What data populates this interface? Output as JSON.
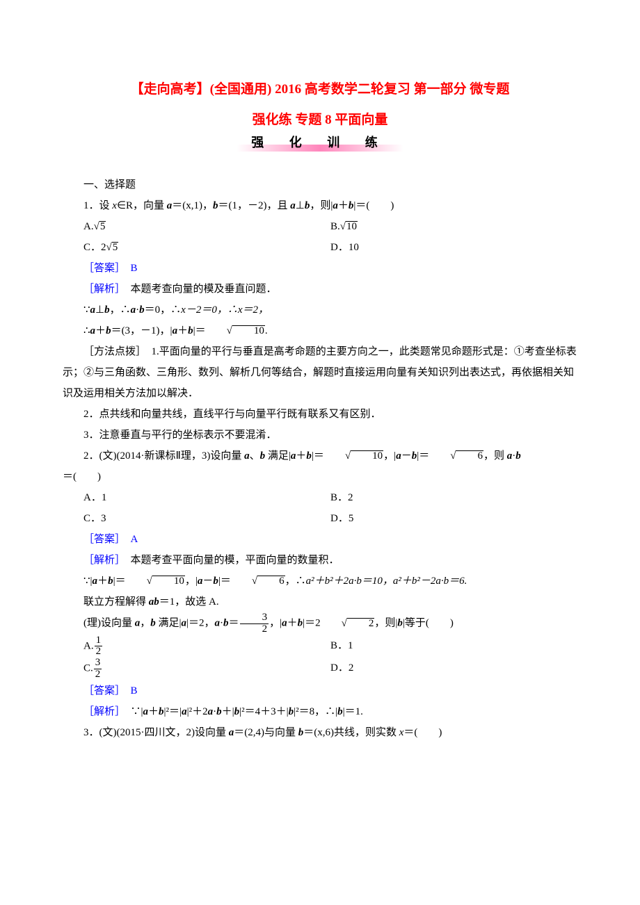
{
  "title1": "【走向高考】(全国通用) 2016 高考数学二轮复习 第一部分 微专题",
  "title2": "强化练 专题 8 平面向量",
  "banner_label": "强 化 训 练",
  "section1_heading": "一、选择题",
  "q1": {
    "stem_pre": "1．设 ",
    "var_x": "x",
    "stem_in_r": "∈R，向量 ",
    "vec_a": "a",
    "a_val": "＝(x,1)，",
    "vec_b": "b",
    "b_val_pre": "＝(1，－2)，且 ",
    "perp": "⊥",
    "stem_after": "，则|",
    "plus": "＋",
    "stem_end": "|＝(　　)",
    "opts": {
      "A": "A.",
      "A_rad": "5",
      "B": "B.",
      "B_rad": "10",
      "C": "C．2",
      "C_rad": "5",
      "D": "D．10"
    },
    "answer_tag": "［答案］",
    "answer": "　B",
    "sol_tag": "［解析］",
    "sol_text": "　本题考查向量的模及垂直问题．",
    "sol_line1_pre": "∵",
    "sol_line1_perp": "⊥",
    "sol_line1_mid": "，∴",
    "sol_line1_dot": "·",
    "sol_line1_eq0": "＝0，∴",
    "sol_line1_xm2": "x－2＝0，∴x＝2，",
    "sol_line2_pre": "∴",
    "sol_line2_ab": "＋",
    "sol_line2_val": "＝(3，－1)，|",
    "sol_line2_plus": "＋",
    "sol_line2_mod": "|＝",
    "sol_line2_rad": "10",
    "sol_line2_dot2": "."
  },
  "method_tip_head": "［方法点拨］",
  "method_tip1": "　1.平面向量的平行与垂直是高考命题的主要方向之一，此类题常见命题形式是：①考查坐标表示；②与三角函数、三角形、数列、解析几何等结合，解题时直接运用向量有关知识列出表达式，再依据相关知识及运用相关方法加以解决．",
  "method_tip2": "2．点共线和向量共线，直线平行与向量平行既有联系又有区别．",
  "method_tip3": "3．注意垂直与平行的坐标表示不要混淆．",
  "q2": {
    "stem_pre": "2．(文)(2014·新课标Ⅱ理，3)设向量 ",
    "sep": "、",
    "stem_mid": " 满足|",
    "plus": "＋",
    "eq1": "|＝",
    "rad10": "10",
    "comma": "，|",
    "minus": "－",
    "eq2": "|＝",
    "rad6": "6",
    "end": "，则 ",
    "dot": "·",
    "tail": "＝(　　)",
    "opts": {
      "A": "A．1",
      "B": "B．2",
      "C": "C．3",
      "D": "D．5"
    },
    "answer_tag": "［答案］",
    "answer": "　A",
    "sol_tag": "［解析］",
    "sol_text": "　本题考查平面向量的模，平面向量的数量积．",
    "sol2_pre": "∵|",
    "sol2_plus": "＋",
    "sol2_eq1": "|＝",
    "sol2_rad10": "10",
    "sol2_comma": "，|",
    "sol2_minus": "－",
    "sol2_eq2": "|＝",
    "sol2_rad6": "6",
    "sol2_so": "，∴",
    "sol2_a2b2plus": "a²＋b²＋2a·b＝10，a²＋b²－2a·b＝6.",
    "sol3": "联立方程解得 ",
    "sol3_ab": "ab",
    "sol3_end": "＝1，故选 A."
  },
  "q2b": {
    "stem_pre": "(理)设向量 ",
    "sep": "，",
    "mid": " 满足|",
    "eq_a": "|＝2，",
    "dot": "·",
    "eq_dot": "＝",
    "frac_num": "3",
    "frac_den": "2",
    "comma": "，|",
    "plus": "＋",
    "eq_sum": "|＝2",
    "rad2": "2",
    "then": "，则|",
    "eq_b": "|等于(　　)",
    "opts": {
      "A_lab": "A.",
      "A_num": "1",
      "A_den": "2",
      "B": "B．1",
      "C_lab": "C.",
      "C_num": "3",
      "C_den": "2",
      "D": "D．2"
    },
    "answer_tag": "［答案］",
    "answer": "　B",
    "sol_tag": "［解析］",
    "sol_pre": "　∵|",
    "sol_plus": "＋",
    "sol_sq": "|²＝|",
    "sol_a_sq": "|²＋2",
    "sol_dot": "·",
    "sol_plus_b": "＋|",
    "sol_b_sq": "|²＝4＋3＋|",
    "sol_b_sq2": "|²＝8，∴|",
    "sol_end": "|＝1."
  },
  "q3": {
    "stem_pre": "3．(文)(2015·四川文，2)设向量 ",
    "a_val": "＝(2,4)与向量 ",
    "b_val": "＝(x,6)共线，则实数 ",
    "var_x": "x",
    "eq": "＝(　　)"
  }
}
